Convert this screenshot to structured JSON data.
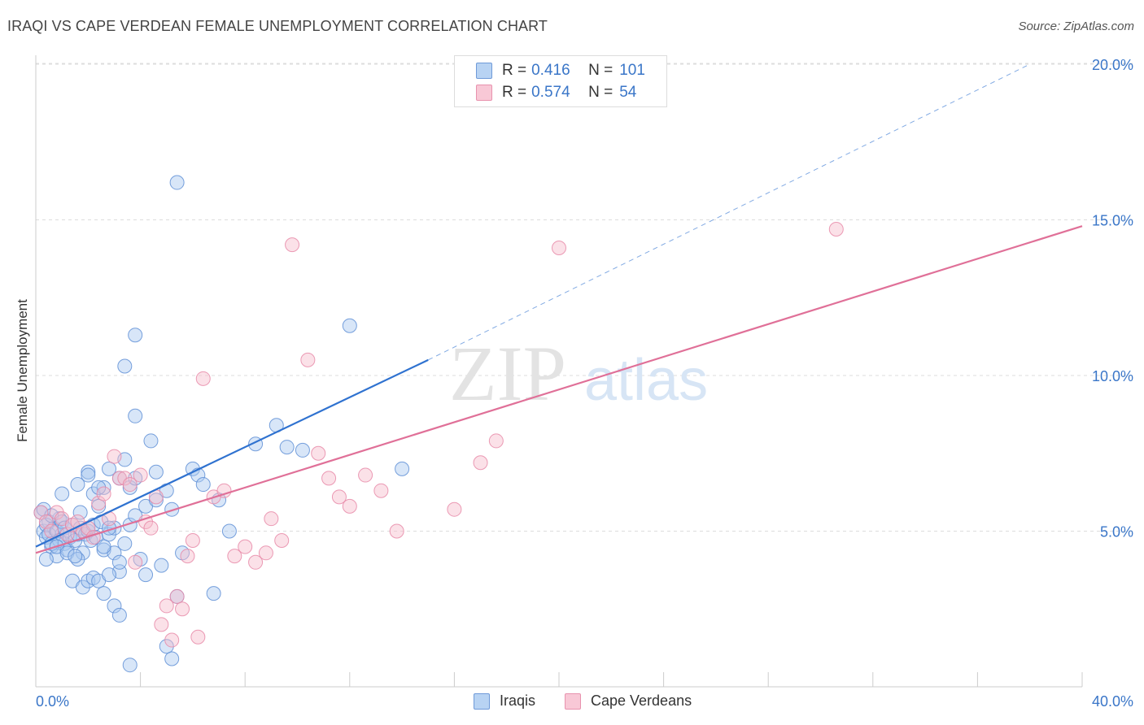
{
  "header": {
    "title": "IRAQI VS CAPE VERDEAN FEMALE UNEMPLOYMENT CORRELATION CHART",
    "source": "Source: ZipAtlas.com"
  },
  "legend": {
    "r_label": "R =",
    "n_label": "N =",
    "series": [
      {
        "name": "Iraqis",
        "r": "0.416",
        "n": "101"
      },
      {
        "name": "Cape Verdeans",
        "r": "0.574",
        "n": "54"
      }
    ]
  },
  "colors": {
    "iraqis_fill": "#a9c8f0",
    "iraqis_stroke": "#5f8fd6",
    "iraqis_line": "#2f72d0",
    "cape_fill": "#f6bccd",
    "cape_stroke": "#e88aa8",
    "cape_line": "#e07098",
    "tick_label": "#3a76c8",
    "grid": "#dddddd"
  },
  "watermark": {
    "part1": "ZIP",
    "part2": "atlas"
  },
  "chart_data": {
    "type": "scatter",
    "title": "IRAQI VS CAPE VERDEAN FEMALE UNEMPLOYMENT CORRELATION CHART",
    "xlabel": "",
    "ylabel": "Female Unemployment",
    "xlim": [
      0,
      40
    ],
    "ylim": [
      0,
      20.5
    ],
    "x_tick_labels": [
      {
        "value": 0,
        "label": "0.0%"
      },
      {
        "value": 40,
        "label": "40.0%"
      }
    ],
    "y_tick_labels": [
      {
        "value": 5,
        "label": "5.0%"
      },
      {
        "value": 10,
        "label": "10.0%"
      },
      {
        "value": 15,
        "label": "15.0%"
      },
      {
        "value": 20,
        "label": "20.0%"
      }
    ],
    "series": [
      {
        "name": "Iraqis",
        "trend": {
          "x0": 0,
          "y0": 4.5,
          "x1": 15,
          "y1": 10.5,
          "dashed_to_x": 38,
          "dashed_to_y": 20.0
        },
        "points": [
          [
            0.2,
            5.6
          ],
          [
            0.3,
            5.0
          ],
          [
            0.4,
            4.8
          ],
          [
            0.5,
            5.3
          ],
          [
            0.6,
            4.5
          ],
          [
            0.7,
            5.1
          ],
          [
            0.8,
            4.2
          ],
          [
            0.9,
            5.4
          ],
          [
            1.0,
            4.9
          ],
          [
            1.1,
            4.6
          ],
          [
            0.3,
            5.7
          ],
          [
            0.4,
            5.2
          ],
          [
            0.5,
            4.9
          ],
          [
            0.6,
            5.5
          ],
          [
            0.8,
            5.0
          ],
          [
            0.9,
            4.7
          ],
          [
            1.0,
            5.3
          ],
          [
            1.1,
            5.1
          ],
          [
            1.2,
            4.4
          ],
          [
            1.3,
            4.8
          ],
          [
            1.4,
            5.2
          ],
          [
            1.5,
            4.7
          ],
          [
            1.6,
            4.9
          ],
          [
            1.7,
            5.1
          ],
          [
            1.8,
            4.3
          ],
          [
            1.9,
            4.9
          ],
          [
            2.0,
            5.0
          ],
          [
            2.1,
            4.7
          ],
          [
            2.2,
            5.2
          ],
          [
            2.3,
            4.8
          ],
          [
            0.4,
            4.1
          ],
          [
            0.6,
            4.6
          ],
          [
            0.8,
            4.5
          ],
          [
            1.0,
            6.2
          ],
          [
            1.2,
            4.3
          ],
          [
            1.4,
            3.4
          ],
          [
            1.6,
            4.1
          ],
          [
            1.8,
            3.2
          ],
          [
            2.0,
            3.4
          ],
          [
            2.2,
            3.5
          ],
          [
            1.5,
            4.2
          ],
          [
            1.7,
            5.6
          ],
          [
            2.0,
            6.9
          ],
          [
            2.2,
            6.2
          ],
          [
            2.4,
            5.8
          ],
          [
            2.5,
            5.3
          ],
          [
            2.6,
            4.4
          ],
          [
            2.8,
            4.9
          ],
          [
            3.0,
            5.1
          ],
          [
            3.2,
            3.7
          ],
          [
            2.4,
            3.4
          ],
          [
            2.6,
            3.0
          ],
          [
            2.8,
            3.6
          ],
          [
            3.0,
            4.3
          ],
          [
            3.2,
            4.0
          ],
          [
            3.4,
            4.6
          ],
          [
            3.6,
            5.2
          ],
          [
            3.8,
            5.5
          ],
          [
            4.0,
            4.1
          ],
          [
            4.2,
            3.6
          ],
          [
            2.6,
            6.4
          ],
          [
            2.8,
            7.0
          ],
          [
            3.2,
            6.7
          ],
          [
            3.4,
            7.3
          ],
          [
            3.6,
            6.4
          ],
          [
            3.8,
            6.7
          ],
          [
            4.2,
            5.8
          ],
          [
            4.6,
            6.0
          ],
          [
            5.0,
            6.3
          ],
          [
            5.2,
            5.7
          ],
          [
            1.6,
            6.5
          ],
          [
            2.0,
            6.8
          ],
          [
            2.4,
            6.4
          ],
          [
            2.6,
            4.5
          ],
          [
            2.8,
            5.1
          ],
          [
            3.0,
            2.6
          ],
          [
            3.2,
            2.3
          ],
          [
            3.6,
            0.7
          ],
          [
            3.8,
            8.7
          ],
          [
            4.4,
            7.9
          ],
          [
            4.6,
            6.9
          ],
          [
            4.8,
            3.9
          ],
          [
            5.0,
            1.3
          ],
          [
            5.2,
            0.9
          ],
          [
            5.4,
            2.9
          ],
          [
            5.6,
            4.3
          ],
          [
            6.0,
            7.0
          ],
          [
            6.2,
            6.8
          ],
          [
            6.4,
            6.5
          ],
          [
            6.8,
            3.0
          ],
          [
            3.4,
            10.3
          ],
          [
            3.8,
            11.3
          ],
          [
            5.4,
            16.2
          ],
          [
            7.0,
            6.0
          ],
          [
            7.4,
            5.0
          ],
          [
            8.4,
            7.8
          ],
          [
            9.2,
            8.4
          ],
          [
            9.6,
            7.7
          ],
          [
            10.2,
            7.6
          ],
          [
            12.0,
            11.6
          ],
          [
            14.0,
            7.0
          ]
        ]
      },
      {
        "name": "Cape Verdeans",
        "trend": {
          "x0": 0,
          "y0": 4.3,
          "x1": 40,
          "y1": 14.8
        },
        "points": [
          [
            0.2,
            5.6
          ],
          [
            0.4,
            5.3
          ],
          [
            0.6,
            5.0
          ],
          [
            0.8,
            5.6
          ],
          [
            1.0,
            5.4
          ],
          [
            1.2,
            4.9
          ],
          [
            1.4,
            5.2
          ],
          [
            1.6,
            5.3
          ],
          [
            1.8,
            5.0
          ],
          [
            2.0,
            5.1
          ],
          [
            2.2,
            4.8
          ],
          [
            2.4,
            5.9
          ],
          [
            2.6,
            6.2
          ],
          [
            2.8,
            5.4
          ],
          [
            3.0,
            7.4
          ],
          [
            3.2,
            6.7
          ],
          [
            3.4,
            6.7
          ],
          [
            3.6,
            6.5
          ],
          [
            3.8,
            4.0
          ],
          [
            4.0,
            6.8
          ],
          [
            4.2,
            5.3
          ],
          [
            4.4,
            5.1
          ],
          [
            4.6,
            6.1
          ],
          [
            4.8,
            2.0
          ],
          [
            5.0,
            2.6
          ],
          [
            5.2,
            1.5
          ],
          [
            5.4,
            2.9
          ],
          [
            5.6,
            2.5
          ],
          [
            5.8,
            4.2
          ],
          [
            6.0,
            4.7
          ],
          [
            6.2,
            1.6
          ],
          [
            6.4,
            9.9
          ],
          [
            6.8,
            6.1
          ],
          [
            7.2,
            6.3
          ],
          [
            7.6,
            4.2
          ],
          [
            8.0,
            4.5
          ],
          [
            8.4,
            4.0
          ],
          [
            8.8,
            4.3
          ],
          [
            9.0,
            5.4
          ],
          [
            9.4,
            4.7
          ],
          [
            9.8,
            14.2
          ],
          [
            10.4,
            10.5
          ],
          [
            10.8,
            7.5
          ],
          [
            11.2,
            6.7
          ],
          [
            11.6,
            6.1
          ],
          [
            12.0,
            5.8
          ],
          [
            12.6,
            6.8
          ],
          [
            13.2,
            6.3
          ],
          [
            13.8,
            5.0
          ],
          [
            16.0,
            5.7
          ],
          [
            17.0,
            7.2
          ],
          [
            17.6,
            7.9
          ],
          [
            20.0,
            14.1
          ],
          [
            30.6,
            14.7
          ]
        ]
      }
    ]
  }
}
